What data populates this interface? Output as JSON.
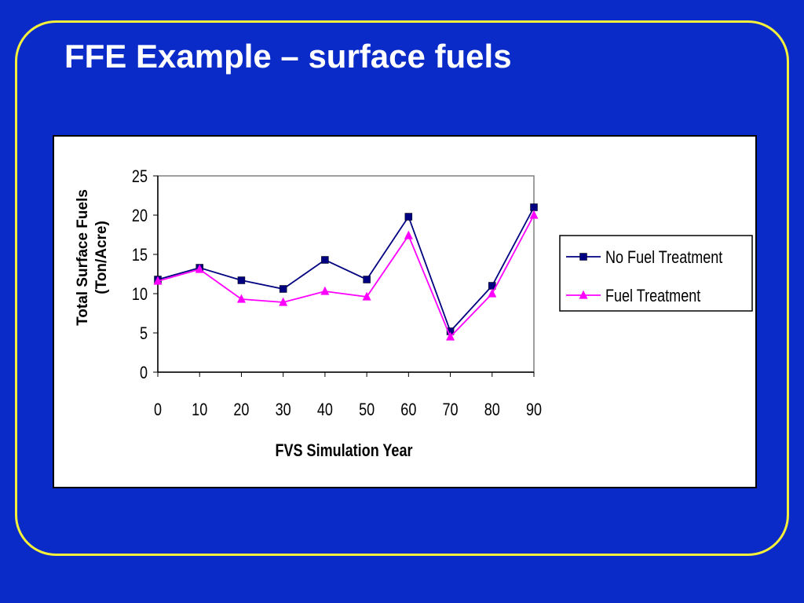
{
  "slide": {
    "title": "FFE Example – surface fuels"
  },
  "colors": {
    "background": "#0a2bc7",
    "frame": "#f5f03a",
    "series_no_treatment": "#000080",
    "series_treatment": "#ff00ff"
  },
  "chart_data": {
    "type": "line",
    "title": "",
    "xlabel": "FVS Simulation Year",
    "ylabel_line1": "Total Surface Fuels",
    "ylabel_line2": "(Ton/Acre)",
    "x": [
      0,
      10,
      20,
      30,
      40,
      50,
      60,
      70,
      80,
      90
    ],
    "xlim": [
      0,
      90
    ],
    "ylim": [
      0,
      25
    ],
    "yticks": [
      0,
      5,
      10,
      15,
      20,
      25
    ],
    "grid": false,
    "legend_position": "right",
    "series": [
      {
        "name": "No Fuel Treatment",
        "marker": "square",
        "values": [
          11.8,
          13.3,
          11.7,
          10.6,
          14.3,
          11.8,
          19.8,
          5.2,
          11.0,
          21.0
        ]
      },
      {
        "name": "Fuel Treatment",
        "marker": "triangle",
        "values": [
          11.6,
          13.1,
          9.3,
          8.9,
          10.3,
          9.6,
          17.4,
          4.5,
          10.0,
          20.0
        ]
      }
    ]
  }
}
